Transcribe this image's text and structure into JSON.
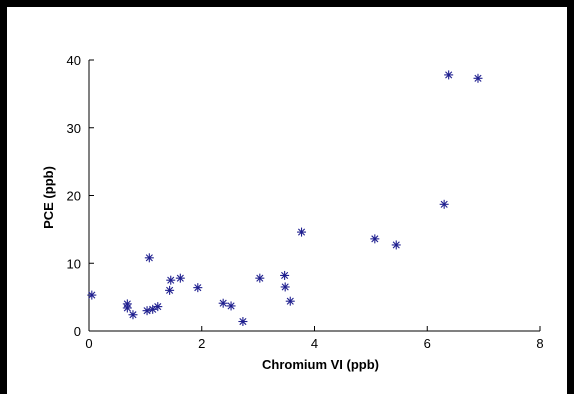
{
  "chart_data": {
    "type": "scatter",
    "title": "",
    "xlabel": "Chromium VI (ppb)",
    "ylabel": "PCE (ppb)",
    "xlim": [
      0,
      8
    ],
    "ylim": [
      0,
      40
    ],
    "x_ticks": [
      0,
      2,
      4,
      6,
      8
    ],
    "y_ticks": [
      0,
      10,
      20,
      30,
      40
    ],
    "grid": false,
    "legend": "none",
    "marker": "asterisk",
    "marker_color": "#1f1f8f",
    "series": [
      {
        "points": [
          [
            0.05,
            5.3
          ],
          [
            0.68,
            4.0
          ],
          [
            0.68,
            3.4
          ],
          [
            0.78,
            2.4
          ],
          [
            1.03,
            3.0
          ],
          [
            1.07,
            10.8
          ],
          [
            1.13,
            3.2
          ],
          [
            1.22,
            3.6
          ],
          [
            1.43,
            6.0
          ],
          [
            1.45,
            7.5
          ],
          [
            1.62,
            7.8
          ],
          [
            1.93,
            6.4
          ],
          [
            2.38,
            4.1
          ],
          [
            2.52,
            3.7
          ],
          [
            2.73,
            1.4
          ],
          [
            3.03,
            7.8
          ],
          [
            3.47,
            8.2
          ],
          [
            3.48,
            6.5
          ],
          [
            3.57,
            4.4
          ],
          [
            3.77,
            14.6
          ],
          [
            5.07,
            13.6
          ],
          [
            5.45,
            12.7
          ],
          [
            6.3,
            18.7
          ],
          [
            6.38,
            37.8
          ],
          [
            6.9,
            37.3
          ]
        ]
      }
    ]
  }
}
